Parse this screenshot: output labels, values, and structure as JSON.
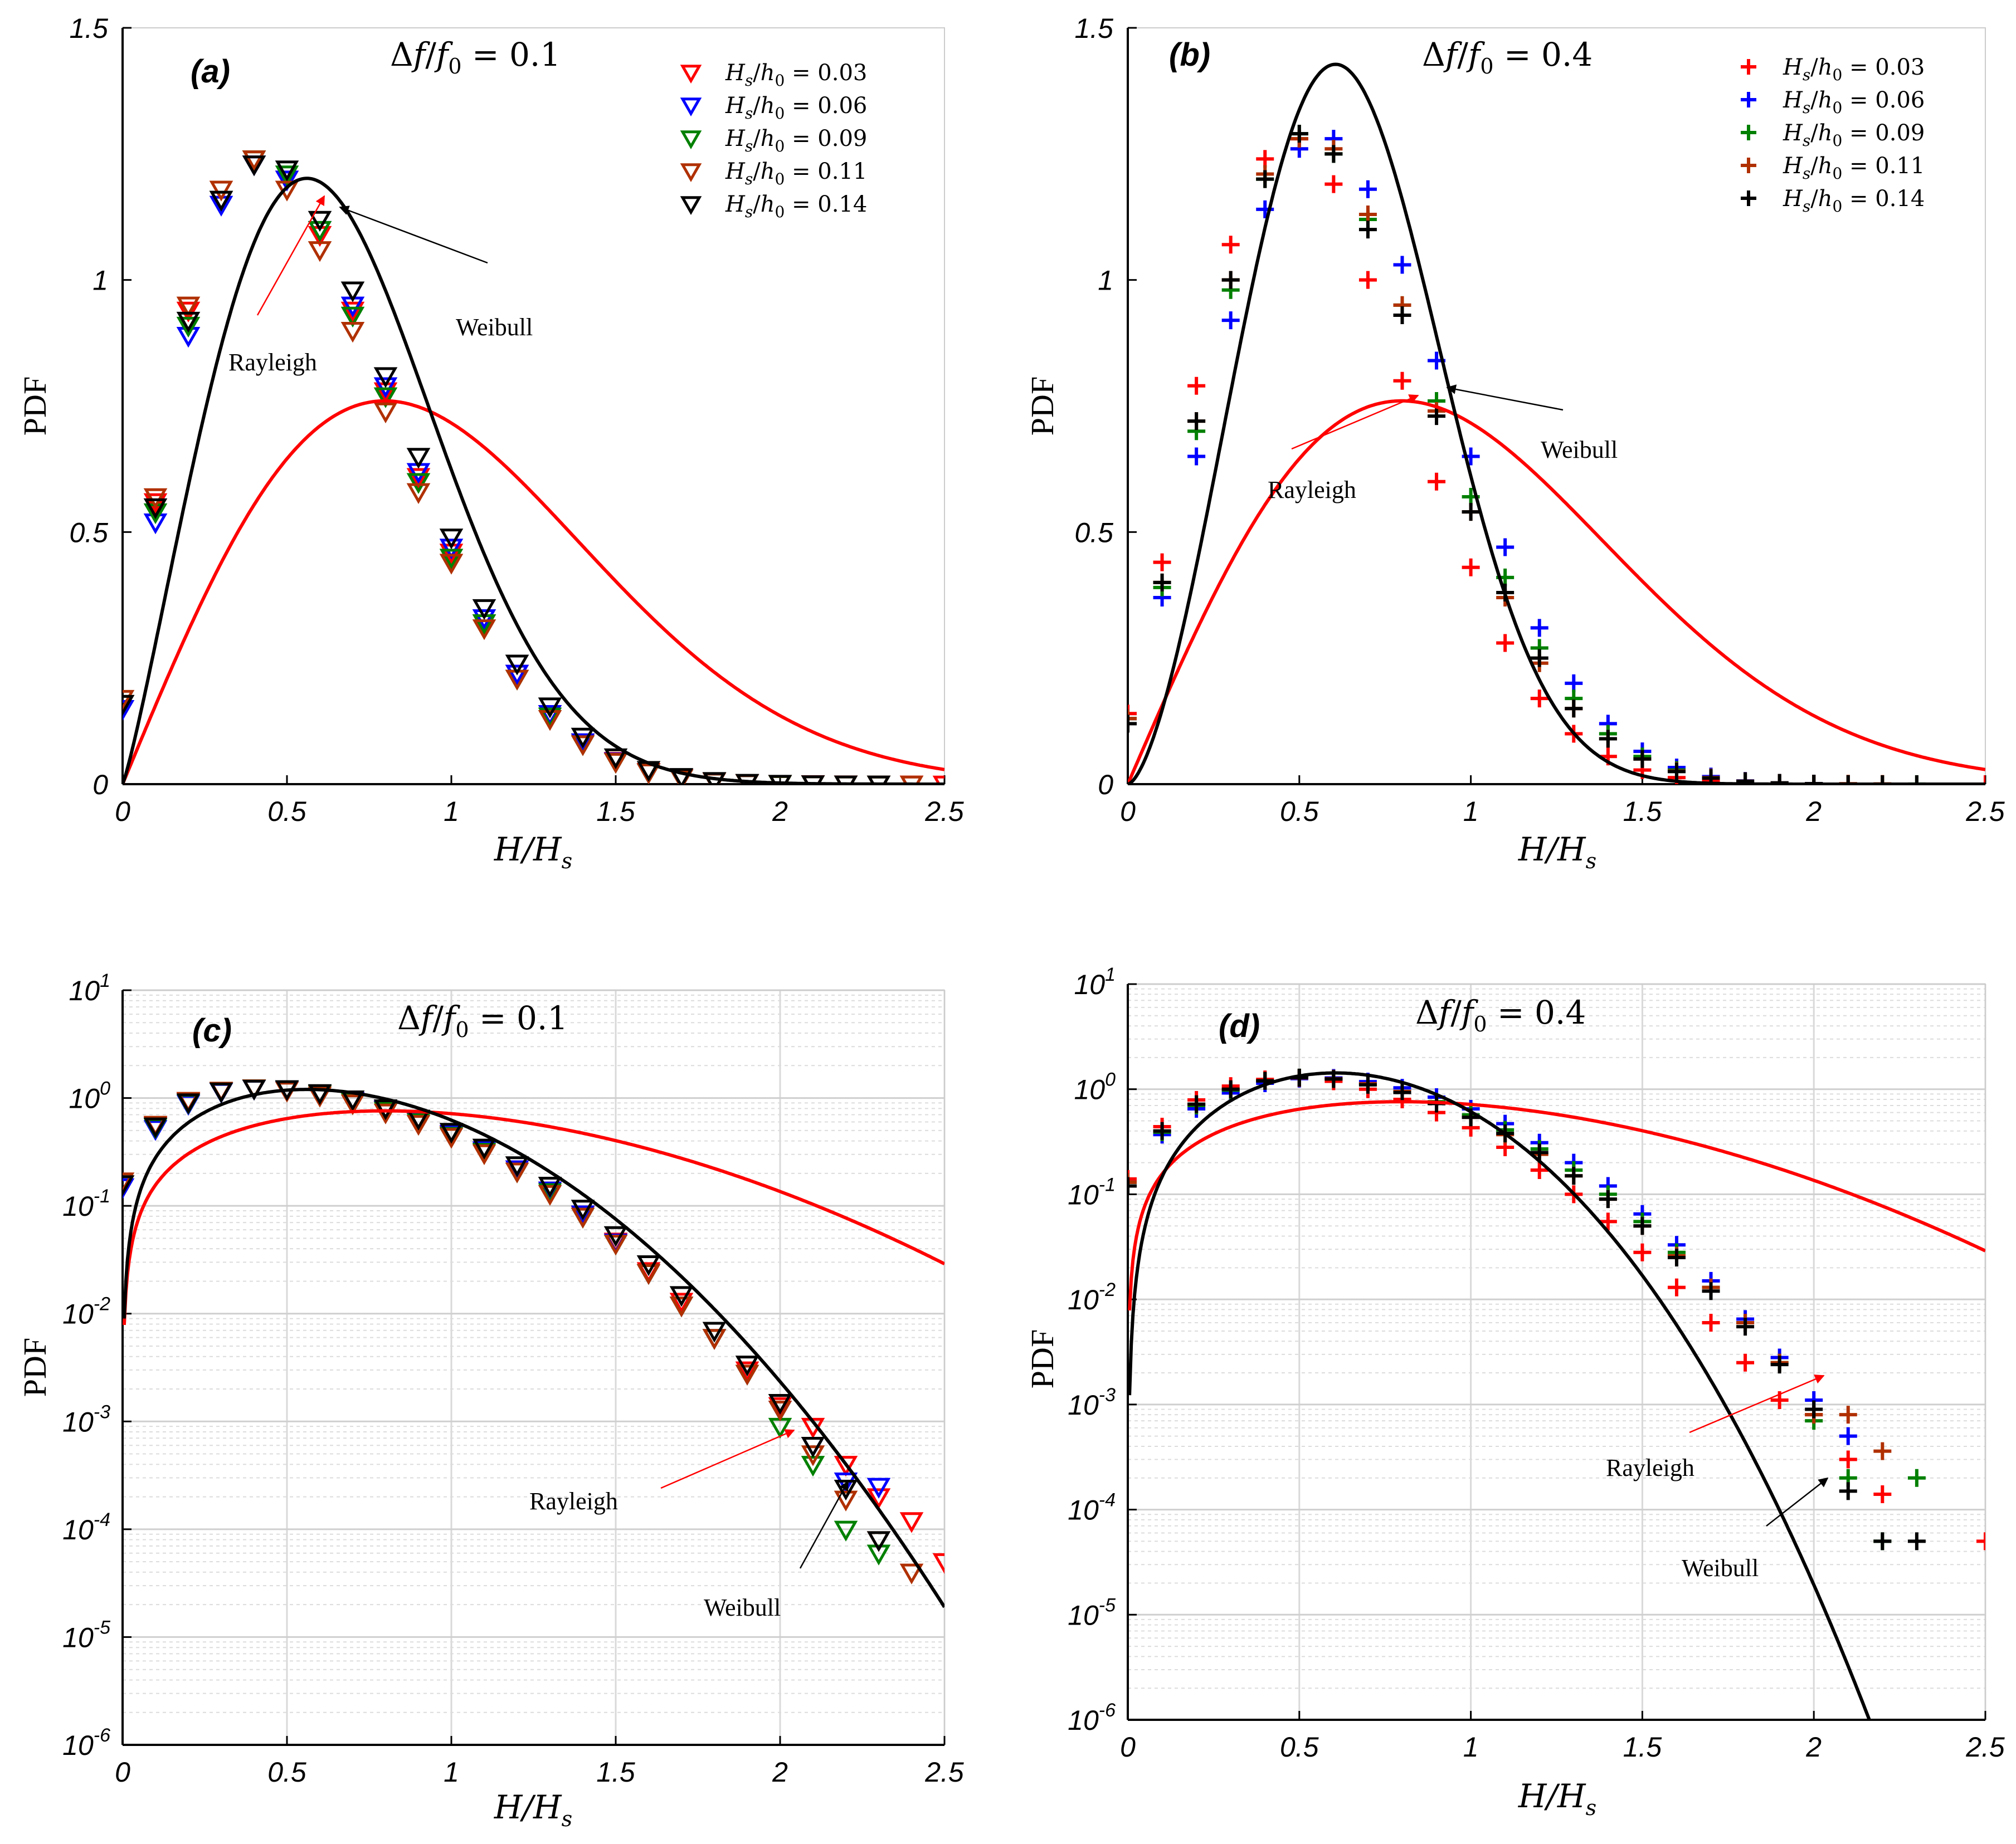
{
  "figure": {
    "xlabel": "H/H_s",
    "ylabel": "PDF"
  },
  "chart_data": [
    {
      "id": "a",
      "panel_label": "(a)",
      "type": "scatter",
      "yscale": "linear",
      "title": "Δf/f_0 = 0.1",
      "title_parts": [
        "Δ",
        "f",
        "/",
        "f",
        "0",
        " = 0.1"
      ],
      "xlabel": "H/H_s",
      "ylabel": "PDF",
      "xlim": [
        0,
        2.5
      ],
      "ylim": [
        0,
        1.5
      ],
      "xticks": [
        0,
        0.5,
        1,
        1.5,
        2,
        2.5
      ],
      "xtick_labels": [
        "0",
        "0.5",
        "1",
        "1.5",
        "2",
        "2.5"
      ],
      "yticks": [
        0,
        0.5,
        1,
        1.5
      ],
      "ytick_labels": [
        "0",
        "0.5",
        "1",
        "1.5"
      ],
      "marker": "triangle-down",
      "legend": [
        "H_s/h_0 = 0.03",
        "H_s/h_0 = 0.06",
        "H_s/h_0 = 0.09",
        "H_s/h_0 = 0.11",
        "H_s/h_0 = 0.14"
      ],
      "series": [
        {
          "name": "H_s/h_0 = 0.03",
          "ratio": "0.03",
          "color": "#ff0000",
          "x": [
            0,
            0.1,
            0.2,
            0.3,
            0.4,
            0.5,
            0.6,
            0.7,
            0.8,
            0.9,
            1,
            1.1,
            1.2,
            1.3,
            1.4,
            1.5,
            1.6,
            1.7,
            1.8,
            1.9,
            2,
            2.1,
            2.2,
            2.3,
            2.4,
            2.5
          ],
          "y": [
            0.16,
            0.56,
            0.94,
            1.16,
            1.24,
            1.2,
            1.09,
            0.94,
            0.78,
            0.61,
            0.46,
            0.32,
            0.22,
            0.14,
            0.083,
            0.047,
            0.025,
            0.013,
            0.006,
            0.003,
            0.0014,
            0.0009,
            0.0004,
            0.0002,
            0.00012,
            5e-05
          ]
        },
        {
          "name": "H_s/h_0 = 0.06",
          "ratio": "0.06",
          "color": "#0000ff",
          "x": [
            0,
            0.1,
            0.2,
            0.3,
            0.4,
            0.5,
            0.6,
            0.7,
            0.8,
            0.9,
            1,
            1.1,
            1.2,
            1.3,
            1.4,
            1.5,
            1.6,
            1.7,
            1.8,
            1.9,
            2,
            2.1,
            2.2,
            2.3
          ],
          "y": [
            0.15,
            0.52,
            0.89,
            1.15,
            1.23,
            1.2,
            1.1,
            0.95,
            0.79,
            0.62,
            0.47,
            0.33,
            0.22,
            0.14,
            0.084,
            0.046,
            0.024,
            0.012,
            0.006,
            0.0028,
            0.0013,
            0.0006,
            0.00028,
            0.00025
          ]
        },
        {
          "name": "H_s/h_0 = 0.09",
          "ratio": "0.09",
          "color": "#008000",
          "x": [
            0,
            0.1,
            0.2,
            0.3,
            0.4,
            0.5,
            0.6,
            0.7,
            0.8,
            0.9,
            1,
            1.1,
            1.2,
            1.3,
            1.4,
            1.5,
            1.6,
            1.7,
            1.8,
            1.9,
            2,
            2.1,
            2.2,
            2.3
          ],
          "y": [
            0.16,
            0.54,
            0.91,
            1.16,
            1.24,
            1.21,
            1.1,
            0.93,
            0.77,
            0.6,
            0.45,
            0.32,
            0.21,
            0.135,
            0.08,
            0.045,
            0.024,
            0.012,
            0.006,
            0.0028,
            0.0009,
            0.0004,
            0.0001,
            6e-05
          ]
        },
        {
          "name": "H_s/h_0 = 0.11",
          "ratio": "0.11",
          "color": "#b03000",
          "x": [
            0,
            0.1,
            0.2,
            0.3,
            0.4,
            0.5,
            0.6,
            0.7,
            0.8,
            0.9,
            1,
            1.1,
            1.2,
            1.3,
            1.4,
            1.5,
            1.6,
            1.7,
            1.8,
            1.9,
            2,
            2.1,
            2.2,
            2.3,
            2.4
          ],
          "y": [
            0.17,
            0.57,
            0.95,
            1.18,
            1.24,
            1.18,
            1.06,
            0.9,
            0.74,
            0.58,
            0.44,
            0.31,
            0.21,
            0.13,
            0.08,
            0.045,
            0.024,
            0.012,
            0.006,
            0.0028,
            0.0013,
            0.0005,
            0.00019,
            8e-05,
            4e-05
          ]
        },
        {
          "name": "H_s/h_0 = 0.14",
          "ratio": "0.14",
          "color": "#000000",
          "x": [
            0,
            0.1,
            0.2,
            0.3,
            0.4,
            0.5,
            0.6,
            0.7,
            0.8,
            0.9,
            1,
            1.1,
            1.2,
            1.3,
            1.4,
            1.5,
            1.6,
            1.7,
            1.8,
            1.9,
            2,
            2.1,
            2.2,
            2.3
          ],
          "y": [
            0.16,
            0.55,
            0.92,
            1.16,
            1.23,
            1.22,
            1.12,
            0.98,
            0.81,
            0.65,
            0.49,
            0.35,
            0.24,
            0.155,
            0.095,
            0.054,
            0.029,
            0.015,
            0.007,
            0.0034,
            0.0015,
            0.0006,
            0.00024,
            8e-05
          ]
        }
      ],
      "curves": [
        {
          "name": "Rayleigh",
          "color": "#ff0000",
          "model": "rayleigh"
        },
        {
          "name": "Weibull",
          "color": "#000000",
          "model": "weibull",
          "k": 2.15,
          "lambda": 0.75
        }
      ],
      "annotations": [
        {
          "text": "Rayleigh",
          "color": "#ff0000",
          "target": [
            0.62,
            1.17
          ],
          "text_pos": [
            0.47,
            0.84
          ]
        },
        {
          "text": "Weibull",
          "color": "#000000",
          "target": [
            0.66,
            1.14
          ],
          "text_pos": [
            1.14,
            0.89
          ]
        }
      ]
    },
    {
      "id": "b",
      "panel_label": "(b)",
      "type": "scatter",
      "yscale": "linear",
      "title": "Δf/f_0 = 0.4",
      "title_parts": [
        "Δ",
        "f",
        "/",
        "f",
        "0",
        " = 0.4"
      ],
      "xlabel": "H/H_s",
      "ylabel": "PDF",
      "xlim": [
        0,
        2.5
      ],
      "ylim": [
        0,
        1.5
      ],
      "xticks": [
        0,
        0.5,
        1,
        1.5,
        2,
        2.5
      ],
      "xtick_labels": [
        "0",
        "0.5",
        "1",
        "1.5",
        "2",
        "2.5"
      ],
      "yticks": [
        0,
        0.5,
        1,
        1.5
      ],
      "ytick_labels": [
        "0",
        "0.5",
        "1",
        "1.5"
      ],
      "marker": "plus",
      "legend": [
        "H_s/h_0 = 0.03",
        "H_s/h_0 = 0.06",
        "H_s/h_0 = 0.09",
        "H_s/h_0 = 0.11",
        "H_s/h_0 = 0.14"
      ],
      "series": [
        {
          "name": "H_s/h_0 = 0.03",
          "ratio": "0.03",
          "color": "#ff0000",
          "x": [
            0,
            0.1,
            0.2,
            0.3,
            0.4,
            0.5,
            0.6,
            0.7,
            0.8,
            0.9,
            1,
            1.1,
            1.2,
            1.3,
            1.4,
            1.5,
            1.6,
            1.7,
            1.8,
            1.9,
            2,
            2.1,
            2.2,
            2.5
          ],
          "y": [
            0.14,
            0.44,
            0.79,
            1.07,
            1.24,
            1.28,
            1.19,
            1.0,
            0.8,
            0.6,
            0.43,
            0.28,
            0.17,
            0.1,
            0.055,
            0.028,
            0.013,
            0.006,
            0.0025,
            0.0011,
            0.0008,
            0.0003,
            0.00014,
            5e-05
          ]
        },
        {
          "name": "H_s/h_0 = 0.06",
          "ratio": "0.06",
          "color": "#0000ff",
          "x": [
            0,
            0.1,
            0.2,
            0.3,
            0.4,
            0.5,
            0.6,
            0.7,
            0.8,
            0.9,
            1,
            1.1,
            1.2,
            1.3,
            1.4,
            1.5,
            1.6,
            1.7,
            1.8,
            1.9,
            2,
            2.1
          ],
          "y": [
            0.13,
            0.37,
            0.65,
            0.92,
            1.14,
            1.26,
            1.28,
            1.18,
            1.03,
            0.84,
            0.65,
            0.47,
            0.31,
            0.2,
            0.12,
            0.065,
            0.033,
            0.015,
            0.0065,
            0.0028,
            0.0011,
            0.0005
          ]
        },
        {
          "name": "H_s/h_0 = 0.09",
          "ratio": "0.09",
          "color": "#008000",
          "x": [
            0,
            0.1,
            0.2,
            0.3,
            0.4,
            0.5,
            0.6,
            0.7,
            0.8,
            0.9,
            1,
            1.1,
            1.2,
            1.3,
            1.4,
            1.5,
            1.6,
            1.7,
            1.8,
            1.9,
            2,
            2.1,
            2.2,
            2.3
          ],
          "y": [
            0.13,
            0.39,
            0.7,
            0.98,
            1.2,
            1.29,
            1.25,
            1.12,
            0.95,
            0.76,
            0.57,
            0.41,
            0.27,
            0.17,
            0.1,
            0.055,
            0.028,
            0.013,
            0.006,
            0.0025,
            0.0007,
            0.0002,
            5e-05,
            0.0002
          ]
        },
        {
          "name": "H_s/h_0 = 0.11",
          "ratio": "0.11",
          "color": "#b03000",
          "x": [
            0,
            0.1,
            0.2,
            0.3,
            0.4,
            0.5,
            0.6,
            0.7,
            0.8,
            0.9,
            1,
            1.1,
            1.2,
            1.3,
            1.4,
            1.5,
            1.6,
            1.7,
            1.8,
            1.9,
            2,
            2.1,
            2.2
          ],
          "y": [
            0.13,
            0.4,
            0.72,
            1.0,
            1.21,
            1.28,
            1.26,
            1.13,
            0.95,
            0.74,
            0.54,
            0.37,
            0.24,
            0.15,
            0.09,
            0.05,
            0.026,
            0.013,
            0.006,
            0.0025,
            0.0008,
            0.0008,
            0.00036
          ]
        },
        {
          "name": "H_s/h_0 = 0.14",
          "ratio": "0.14",
          "color": "#000000",
          "x": [
            0,
            0.1,
            0.2,
            0.3,
            0.4,
            0.5,
            0.6,
            0.7,
            0.8,
            0.9,
            1,
            1.1,
            1.2,
            1.3,
            1.4,
            1.5,
            1.6,
            1.7,
            1.8,
            1.9,
            2,
            2.1,
            2.2,
            2.3
          ],
          "y": [
            0.12,
            0.4,
            0.72,
            1.0,
            1.2,
            1.29,
            1.25,
            1.1,
            0.93,
            0.73,
            0.54,
            0.38,
            0.25,
            0.15,
            0.09,
            0.05,
            0.025,
            0.012,
            0.0055,
            0.0024,
            0.0009,
            0.00015,
            5e-05,
            5e-05
          ]
        }
      ],
      "curves": [
        {
          "name": "Rayleigh",
          "color": "#ff0000",
          "model": "rayleigh"
        },
        {
          "name": "Weibull",
          "color": "#000000",
          "model": "weibull",
          "k": 2.6,
          "lambda": 0.73
        }
      ],
      "annotations": [
        {
          "text": "Rayleigh",
          "color": "#ff0000",
          "target": [
            0.88,
            0.78
          ],
          "text_pos": [
            0.56,
            0.56
          ]
        },
        {
          "text": "Weibull",
          "color": "#000000",
          "target": [
            0.93,
            0.79
          ],
          "text_pos": [
            1.27,
            0.64
          ]
        }
      ]
    },
    {
      "id": "c",
      "panel_label": "(c)",
      "type": "scatter",
      "yscale": "log",
      "title": "Δf/f_0 = 0.1",
      "title_parts": [
        "Δ",
        "f",
        "/",
        "f",
        "0",
        " = 0.1"
      ],
      "xlabel": "H/H_s",
      "ylabel": "PDF",
      "xlim": [
        0,
        2.5
      ],
      "ylim_exp": [
        -6,
        1
      ],
      "xticks": [
        0,
        0.5,
        1,
        1.5,
        2,
        2.5
      ],
      "xtick_labels": [
        "0",
        "0.5",
        "1",
        "1.5",
        "2",
        "2.5"
      ],
      "yticks_exp": [
        -6,
        -5,
        -4,
        -3,
        -2,
        -1,
        0,
        1
      ],
      "ytick_base": "10",
      "ytick_exps": [
        "-6",
        "-5",
        "-4",
        "-3",
        "-2",
        "-1",
        "0",
        "1"
      ],
      "marker": "triangle-down",
      "series_ref": "a",
      "curves": [
        {
          "name": "Rayleigh",
          "color": "#ff0000",
          "model": "rayleigh"
        },
        {
          "name": "Weibull",
          "color": "#000000",
          "model": "weibull",
          "k": 2.15,
          "lambda": 0.75
        }
      ],
      "annotations": [
        {
          "text": "Rayleigh",
          "color": "#ff0000",
          "target": [
            2.07,
            0.0009
          ],
          "text_pos": [
            1.38,
            0.00017
          ]
        },
        {
          "text": "Weibull",
          "color": "#000000",
          "target": [
            2.23,
            0.00023
          ],
          "text_pos": [
            1.78,
            1.8e-05
          ]
        }
      ]
    },
    {
      "id": "d",
      "panel_label": "(d)",
      "type": "scatter",
      "yscale": "log",
      "title": "Δf/f_0 = 0.4",
      "title_parts": [
        "Δ",
        "f",
        "/",
        "f",
        "0",
        " = 0.4"
      ],
      "xlabel": "H/H_s",
      "ylabel": "PDF",
      "xlim": [
        0,
        2.5
      ],
      "ylim_exp": [
        -6,
        1
      ],
      "xticks": [
        0,
        0.5,
        1,
        1.5,
        2,
        2.5
      ],
      "xtick_labels": [
        "0",
        "0.5",
        "1",
        "1.5",
        "2",
        "2.5"
      ],
      "yticks_exp": [
        -6,
        -5,
        -4,
        -3,
        -2,
        -1,
        0,
        1
      ],
      "ytick_base": "10",
      "ytick_exps": [
        "-6",
        "-5",
        "-4",
        "-3",
        "-2",
        "-1",
        "0",
        "1"
      ],
      "marker": "plus",
      "series_ref": "b",
      "curves": [
        {
          "name": "Rayleigh",
          "color": "#ff0000",
          "model": "rayleigh"
        },
        {
          "name": "Weibull",
          "color": "#000000",
          "model": "weibull",
          "k": 2.6,
          "lambda": 0.73
        }
      ],
      "annotations": [
        {
          "text": "Rayleigh",
          "color": "#ff0000",
          "target": [
            2.03,
            0.0027
          ],
          "text_pos": [
            1.38,
            0.00036
          ]
        },
        {
          "text": "Weibull",
          "color": "#000000",
          "target": [
            2.04,
            0.00024
          ],
          "text_pos": [
            1.6,
            3.8e-05
          ]
        }
      ]
    }
  ]
}
